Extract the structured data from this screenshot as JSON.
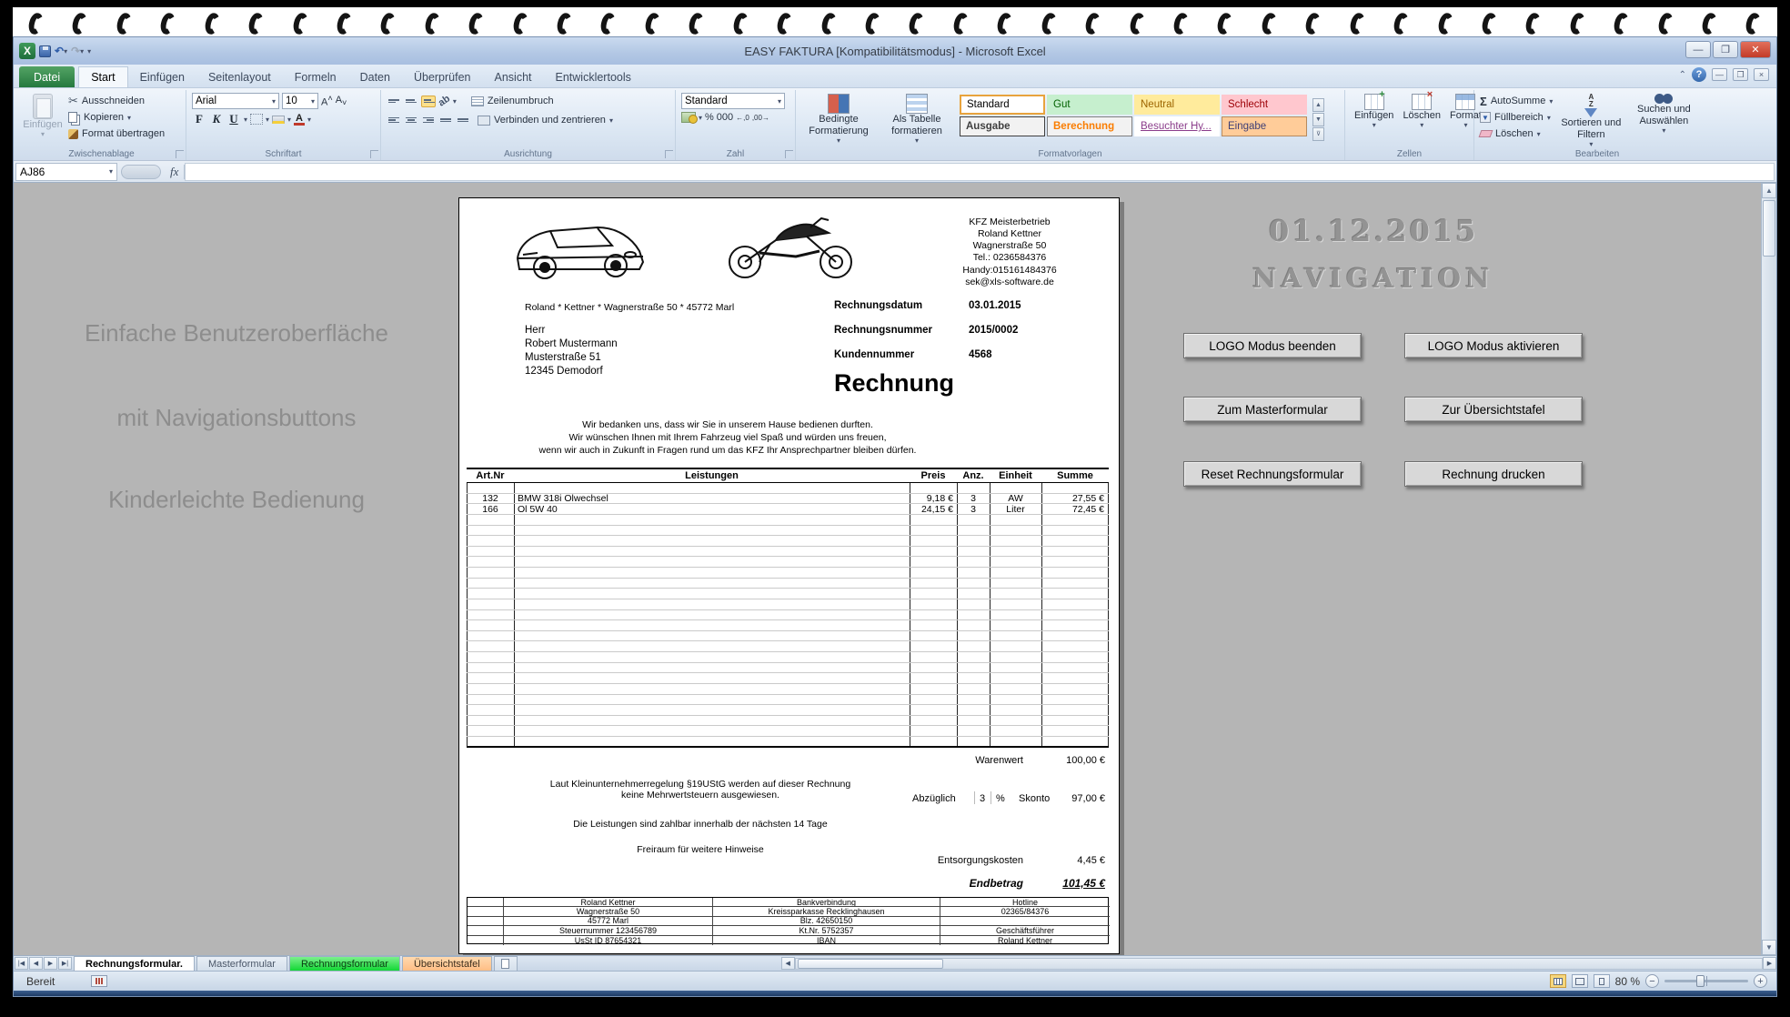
{
  "window": {
    "title": "EASY FAKTURA  [Kompatibilitätsmodus]  -  Microsoft Excel"
  },
  "ribbon": {
    "file_tab": "Datei",
    "tabs": [
      "Start",
      "Einfügen",
      "Seitenlayout",
      "Formeln",
      "Daten",
      "Überprüfen",
      "Ansicht",
      "Entwicklertools"
    ],
    "clipboard": {
      "label": "Zwischenablage",
      "paste": "Einfügen",
      "cut": "Ausschneiden",
      "copy": "Kopieren",
      "painter": "Format übertragen"
    },
    "font": {
      "label": "Schriftart",
      "family": "Arial",
      "size": "10",
      "bold_glyph": "F",
      "italic_glyph": "K",
      "underline_glyph": "U"
    },
    "alignment": {
      "label": "Ausrichtung",
      "wrap": "Zeilenumbruch",
      "merge": "Verbinden und zentrieren"
    },
    "number": {
      "label": "Zahl",
      "format": "Standard",
      "percent": "%",
      "thousands": "000"
    },
    "styles": {
      "label": "Formatvorlagen",
      "conditional": "Bedingte Formatierung",
      "as_table": "Als Tabelle formatieren",
      "items": [
        "Standard",
        "Gut",
        "Neutral",
        "Schlecht",
        "Ausgabe",
        "Berechnung",
        "Besuchter Hy...",
        "Eingabe"
      ]
    },
    "cells": {
      "label": "Zellen",
      "insert": "Einfügen",
      "delete": "Löschen",
      "format": "Format"
    },
    "editing": {
      "label": "Bearbeiten",
      "autosum": "AutoSumme",
      "fill": "Füllbereich",
      "clear": "Löschen",
      "sort": "Sortieren und Filtern",
      "find": "Suchen und Auswählen"
    }
  },
  "formula_bar": {
    "name_box": "AJ86",
    "fx": "fx"
  },
  "canvas": {
    "left_notes": [
      "Einfache Benutzeroberfläche",
      "mit Navigationsbuttons",
      "Kinderleichte Bedienung"
    ],
    "date_text": "01.12.2015",
    "nav_title": "NAVIGATION",
    "nav_buttons": [
      "LOGO Modus beenden",
      "LOGO Modus aktivieren",
      "Zum Masterformular",
      "Zur Übersichtstafel",
      "Reset Rechnungsformular",
      "Rechnung drucken"
    ]
  },
  "invoice": {
    "company_block": [
      "KFZ Meisterbetrieb",
      "Roland Kettner",
      "Wagnerstraße 50",
      "Tel.: 0236584376",
      "Handy:015161484376",
      "sek@xls-software.de"
    ],
    "sender_line": "Roland  *  Kettner  *  Wagnerstraße 50  *  45772 Marl",
    "recipient": [
      "Herr",
      "Robert Mustermann",
      "Musterstraße 51",
      "12345 Demodorf"
    ],
    "meta": [
      {
        "label": "Rechnungsdatum",
        "value": "03.01.2015"
      },
      {
        "label": "Rechnungsnummer",
        "value": "2015/0002"
      },
      {
        "label": "Kundennummer",
        "value": "4568"
      }
    ],
    "doc_title": "Rechnung",
    "greeting": [
      "Wir bedanken uns, dass wir Sie in unserem Hause bedienen durften.",
      "Wir wünschen Ihnen mit Ihrem Fahrzeug viel Spaß und würden uns freuen,",
      "wenn wir auch in Zukunft in Fragen rund um das KFZ Ihr Ansprechpartner bleiben dürfen."
    ],
    "table": {
      "headers": [
        "Art.Nr",
        "Leistungen",
        "Preis",
        "Anz.",
        "Einheit",
        "Summe"
      ],
      "rows": [
        {
          "art": "132",
          "leistung": "BMW 318i Olwechsel",
          "preis": "9,18 €",
          "anz": "3",
          "einheit": "AW",
          "summe": "27,55 €"
        },
        {
          "art": "166",
          "leistung": "Ol  5W 40",
          "preis": "24,15 €",
          "anz": "3",
          "einheit": "Liter",
          "summe": "72,45 €"
        }
      ]
    },
    "totals": {
      "warenwert_label": "Warenwert",
      "warenwert": "100,00 €",
      "tax_note_1": "Laut Kleinunternehmerregelung §19UStG werden auf dieser Rechnung",
      "tax_note_2": "keine Mehrwertsteuern ausgewiesen.",
      "skonto_prefix": "Abzüglich",
      "skonto_pct": "3",
      "pct_sign": "%",
      "skonto_label": "Skonto",
      "skonto": "97,00 €",
      "payment_note": "Die Leistungen sind zahlbar innerhalb der nächsten 14 Tage",
      "free_note": "Freiraum für weitere Hinweise",
      "disposal_label": "Entsorgungskosten",
      "disposal": "4,45 €",
      "total_label": "Endbetrag",
      "total": "101,45 €"
    },
    "footer_rows": [
      [
        "",
        "Roland Kettner",
        "Bankverbindung",
        "Hotline"
      ],
      [
        "",
        "Wagnerstraße 50",
        "Kreissparkasse Recklinghausen",
        "02365/84376"
      ],
      [
        "",
        "45772 Marl",
        "Blz. 42650150",
        ""
      ],
      [
        "",
        "Steuernummer 123456789",
        "Kt.Nr. 5752357",
        "Geschäftsführer"
      ],
      [
        "",
        "UsSt ID 87654321",
        "IBAN",
        "Roland Kettner"
      ]
    ]
  },
  "sheet_bar": {
    "tabs": [
      {
        "label": "Rechnungsformular."
      },
      {
        "label": "Masterformular"
      },
      {
        "label": "Rechnungsformular"
      },
      {
        "label": "Übersichtstafel"
      }
    ]
  },
  "status_bar": {
    "ready": "Bereit",
    "zoom": "80 %"
  }
}
